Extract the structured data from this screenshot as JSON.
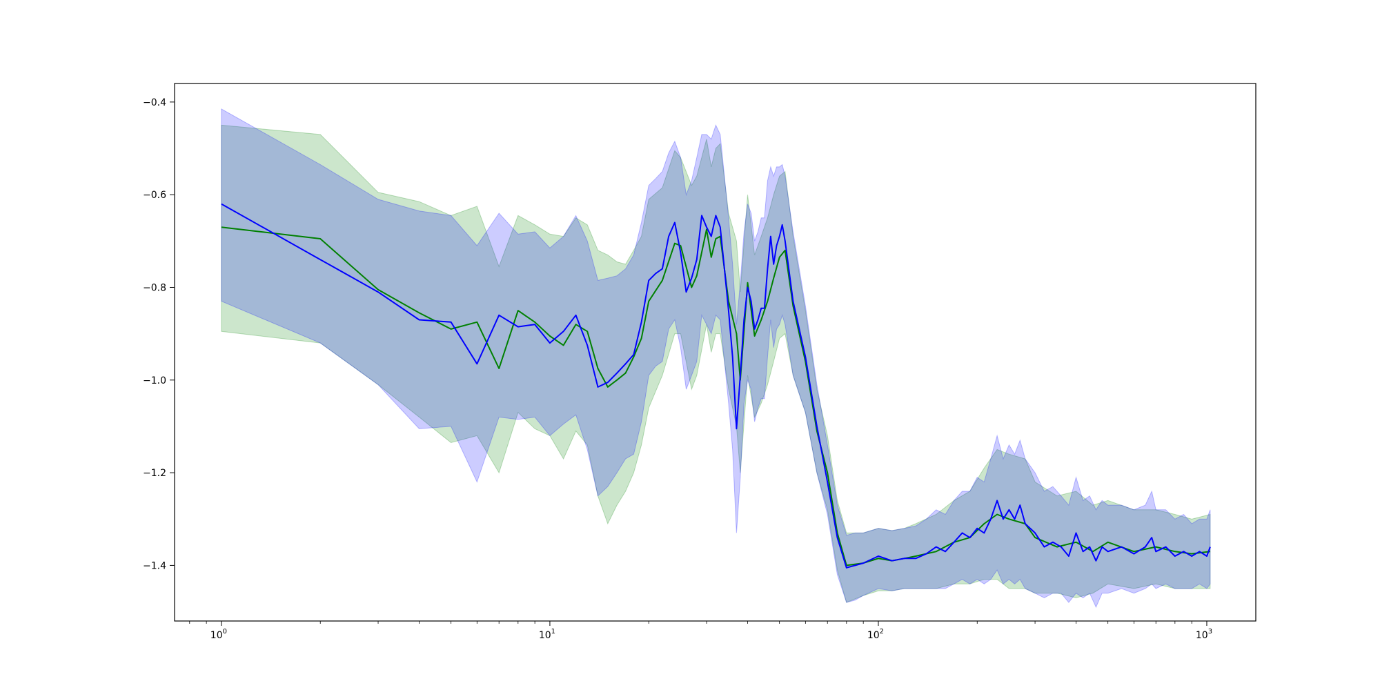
{
  "chart_data": {
    "type": "line",
    "xscale": "log",
    "xlim": [
      0.72,
      1410
    ],
    "ylim": [
      -1.52,
      -0.36
    ],
    "grid": false,
    "legend": "none",
    "title": "",
    "xlabel": "",
    "ylabel": "",
    "x_ticks": [
      {
        "value": 1,
        "base": "10",
        "exp": "0"
      },
      {
        "value": 10,
        "base": "10",
        "exp": "1"
      },
      {
        "value": 100,
        "base": "10",
        "exp": "2"
      },
      {
        "value": 1000,
        "base": "10",
        "exp": "3"
      }
    ],
    "y_ticks": [
      {
        "value": -0.4,
        "label": "−0.4"
      },
      {
        "value": -0.6,
        "label": "−0.6"
      },
      {
        "value": -0.8,
        "label": "−0.8"
      },
      {
        "value": -1.0,
        "label": "−1.0"
      },
      {
        "value": -1.2,
        "label": "−1.2"
      },
      {
        "value": -1.4,
        "label": "−1.4"
      }
    ],
    "series": [
      {
        "color": "#008000",
        "band_color": "#008000",
        "points": [
          [
            1,
            -0.67,
            -0.895,
            -0.45
          ],
          [
            2,
            -0.695,
            -0.92,
            -0.47
          ],
          [
            3,
            -0.805,
            -1.01,
            -0.595
          ],
          [
            4,
            -0.855,
            -1.08,
            -0.615
          ],
          [
            5,
            -0.89,
            -1.135,
            -0.645
          ],
          [
            6,
            -0.875,
            -1.12,
            -0.625
          ],
          [
            7,
            -0.975,
            -1.2,
            -0.755
          ],
          [
            8,
            -0.85,
            -1.07,
            -0.645
          ],
          [
            9,
            -0.875,
            -1.105,
            -0.665
          ],
          [
            10,
            -0.905,
            -1.12,
            -0.685
          ],
          [
            11,
            -0.925,
            -1.17,
            -0.69
          ],
          [
            12,
            -0.88,
            -1.11,
            -0.65
          ],
          [
            13,
            -0.895,
            -1.14,
            -0.665
          ],
          [
            14,
            -0.975,
            -1.25,
            -0.72
          ],
          [
            15,
            -1.015,
            -1.31,
            -0.73
          ],
          [
            16,
            -1.0,
            -1.27,
            -0.745
          ],
          [
            17,
            -0.985,
            -1.24,
            -0.75
          ],
          [
            18,
            -0.95,
            -1.2,
            -0.72
          ],
          [
            19,
            -0.91,
            -1.14,
            -0.69
          ],
          [
            20,
            -0.83,
            -1.06,
            -0.61
          ],
          [
            22,
            -0.785,
            -0.99,
            -0.585
          ],
          [
            24,
            -0.705,
            -0.9,
            -0.505
          ],
          [
            25,
            -0.71,
            -0.9,
            -0.52
          ],
          [
            27,
            -0.8,
            -1.02,
            -0.58
          ],
          [
            28,
            -0.775,
            -0.99,
            -0.56
          ],
          [
            30,
            -0.675,
            -0.88,
            -0.48
          ],
          [
            31,
            -0.735,
            -0.94,
            -0.54
          ],
          [
            32,
            -0.695,
            -0.9,
            -0.5
          ],
          [
            33,
            -0.69,
            -0.9,
            -0.49
          ],
          [
            35,
            -0.83,
            -1.02,
            -0.64
          ],
          [
            37,
            -0.9,
            -1.1,
            -0.7
          ],
          [
            38,
            -1.0,
            -1.2,
            -0.81
          ],
          [
            40,
            -0.79,
            -0.99,
            -0.6
          ],
          [
            42,
            -0.905,
            -1.08,
            -0.73
          ],
          [
            44,
            -0.87,
            -1.05,
            -0.69
          ],
          [
            46,
            -0.83,
            -1.01,
            -0.65
          ],
          [
            48,
            -0.78,
            -0.96,
            -0.6
          ],
          [
            50,
            -0.735,
            -0.91,
            -0.56
          ],
          [
            52,
            -0.72,
            -0.9,
            -0.55
          ],
          [
            55,
            -0.84,
            -0.99,
            -0.69
          ],
          [
            60,
            -0.96,
            -1.07,
            -0.85
          ],
          [
            65,
            -1.11,
            -1.2,
            -1.02
          ],
          [
            70,
            -1.2,
            -1.28,
            -1.12
          ],
          [
            75,
            -1.33,
            -1.41,
            -1.26
          ],
          [
            80,
            -1.4,
            -1.48,
            -1.33
          ],
          [
            90,
            -1.395,
            -1.465,
            -1.33
          ],
          [
            100,
            -1.385,
            -1.455,
            -1.32
          ],
          [
            110,
            -1.39,
            -1.455,
            -1.325
          ],
          [
            120,
            -1.385,
            -1.45,
            -1.32
          ],
          [
            130,
            -1.38,
            -1.45,
            -1.31
          ],
          [
            150,
            -1.37,
            -1.45,
            -1.29
          ],
          [
            170,
            -1.35,
            -1.44,
            -1.26
          ],
          [
            190,
            -1.34,
            -1.44,
            -1.24
          ],
          [
            210,
            -1.31,
            -1.43,
            -1.19
          ],
          [
            230,
            -1.29,
            -1.43,
            -1.15
          ],
          [
            250,
            -1.3,
            -1.45,
            -1.16
          ],
          [
            280,
            -1.31,
            -1.45,
            -1.17
          ],
          [
            300,
            -1.34,
            -1.46,
            -1.22
          ],
          [
            350,
            -1.36,
            -1.46,
            -1.25
          ],
          [
            400,
            -1.35,
            -1.47,
            -1.24
          ],
          [
            450,
            -1.37,
            -1.46,
            -1.27
          ],
          [
            500,
            -1.35,
            -1.44,
            -1.26
          ],
          [
            600,
            -1.37,
            -1.45,
            -1.28
          ],
          [
            700,
            -1.36,
            -1.44,
            -1.28
          ],
          [
            800,
            -1.37,
            -1.45,
            -1.29
          ],
          [
            900,
            -1.375,
            -1.45,
            -1.3
          ],
          [
            1024,
            -1.37,
            -1.45,
            -1.29
          ]
        ]
      },
      {
        "color": "#0000ff",
        "band_color": "#0000ff",
        "points": [
          [
            1,
            -0.62,
            -0.83,
            -0.415
          ],
          [
            2,
            -0.74,
            -0.92,
            -0.535
          ],
          [
            3,
            -0.81,
            -1.01,
            -0.61
          ],
          [
            4,
            -0.87,
            -1.105,
            -0.635
          ],
          [
            5,
            -0.875,
            -1.1,
            -0.645
          ],
          [
            6,
            -0.965,
            -1.22,
            -0.71
          ],
          [
            7,
            -0.86,
            -1.08,
            -0.64
          ],
          [
            8,
            -0.885,
            -1.085,
            -0.685
          ],
          [
            9,
            -0.88,
            -1.08,
            -0.68
          ],
          [
            10,
            -0.92,
            -1.12,
            -0.715
          ],
          [
            11,
            -0.895,
            -1.095,
            -0.69
          ],
          [
            12,
            -0.86,
            -1.075,
            -0.645
          ],
          [
            13,
            -0.925,
            -1.15,
            -0.7
          ],
          [
            14,
            -1.015,
            -1.25,
            -0.785
          ],
          [
            15,
            -1.005,
            -1.23,
            -0.78
          ],
          [
            16,
            -0.985,
            -1.2,
            -0.775
          ],
          [
            17,
            -0.965,
            -1.17,
            -0.76
          ],
          [
            18,
            -0.945,
            -1.16,
            -0.73
          ],
          [
            19,
            -0.875,
            -1.09,
            -0.66
          ],
          [
            20,
            -0.785,
            -0.99,
            -0.58
          ],
          [
            21,
            -0.77,
            -0.97,
            -0.565
          ],
          [
            22,
            -0.76,
            -0.96,
            -0.55
          ],
          [
            23,
            -0.69,
            -0.89,
            -0.51
          ],
          [
            24,
            -0.66,
            -0.87,
            -0.485
          ],
          [
            25,
            -0.725,
            -0.93,
            -0.52
          ],
          [
            26,
            -0.81,
            -1.02,
            -0.6
          ],
          [
            27,
            -0.78,
            -0.99,
            -0.57
          ],
          [
            28,
            -0.74,
            -0.96,
            -0.52
          ],
          [
            29,
            -0.645,
            -0.86,
            -0.47
          ],
          [
            30,
            -0.67,
            -0.88,
            -0.47
          ],
          [
            31,
            -0.69,
            -0.9,
            -0.48
          ],
          [
            32,
            -0.645,
            -0.86,
            -0.45
          ],
          [
            33,
            -0.67,
            -0.87,
            -0.47
          ],
          [
            34,
            -0.76,
            -0.96,
            -0.56
          ],
          [
            35,
            -0.85,
            -1.05,
            -0.65
          ],
          [
            36,
            -0.95,
            -1.15,
            -0.75
          ],
          [
            37,
            -1.105,
            -1.33,
            -0.88
          ],
          [
            38,
            -0.99,
            -1.21,
            -0.79
          ],
          [
            39,
            -0.87,
            -1.05,
            -0.68
          ],
          [
            40,
            -0.8,
            -1.0,
            -0.62
          ],
          [
            41,
            -0.83,
            -1.02,
            -0.64
          ],
          [
            42,
            -0.89,
            -1.09,
            -0.7
          ],
          [
            43,
            -0.87,
            -1.06,
            -0.68
          ],
          [
            44,
            -0.845,
            -1.04,
            -0.65
          ],
          [
            45,
            -0.845,
            -1.04,
            -0.65
          ],
          [
            46,
            -0.76,
            -0.95,
            -0.57
          ],
          [
            47,
            -0.69,
            -0.87,
            -0.54
          ],
          [
            48,
            -0.75,
            -0.93,
            -0.56
          ],
          [
            49,
            -0.71,
            -0.89,
            -0.54
          ],
          [
            50,
            -0.69,
            -0.88,
            -0.54
          ],
          [
            51,
            -0.665,
            -0.86,
            -0.535
          ],
          [
            52,
            -0.7,
            -0.88,
            -0.56
          ],
          [
            55,
            -0.83,
            -0.99,
            -0.68
          ],
          [
            60,
            -0.95,
            -1.07,
            -0.84
          ],
          [
            65,
            -1.1,
            -1.2,
            -1.01
          ],
          [
            70,
            -1.22,
            -1.29,
            -1.14
          ],
          [
            75,
            -1.34,
            -1.42,
            -1.27
          ],
          [
            80,
            -1.405,
            -1.48,
            -1.335
          ],
          [
            85,
            -1.4,
            -1.475,
            -1.33
          ],
          [
            90,
            -1.395,
            -1.465,
            -1.33
          ],
          [
            100,
            -1.38,
            -1.45,
            -1.32
          ],
          [
            110,
            -1.39,
            -1.455,
            -1.325
          ],
          [
            120,
            -1.385,
            -1.45,
            -1.32
          ],
          [
            130,
            -1.385,
            -1.45,
            -1.315
          ],
          [
            140,
            -1.375,
            -1.45,
            -1.3
          ],
          [
            150,
            -1.36,
            -1.45,
            -1.28
          ],
          [
            160,
            -1.37,
            -1.45,
            -1.29
          ],
          [
            170,
            -1.35,
            -1.44,
            -1.26
          ],
          [
            180,
            -1.33,
            -1.43,
            -1.24
          ],
          [
            190,
            -1.34,
            -1.44,
            -1.24
          ],
          [
            200,
            -1.32,
            -1.43,
            -1.21
          ],
          [
            210,
            -1.33,
            -1.44,
            -1.22
          ],
          [
            220,
            -1.3,
            -1.43,
            -1.17
          ],
          [
            230,
            -1.26,
            -1.41,
            -1.12
          ],
          [
            240,
            -1.3,
            -1.44,
            -1.17
          ],
          [
            250,
            -1.28,
            -1.43,
            -1.14
          ],
          [
            260,
            -1.3,
            -1.44,
            -1.16
          ],
          [
            270,
            -1.27,
            -1.43,
            -1.13
          ],
          [
            280,
            -1.31,
            -1.45,
            -1.17
          ],
          [
            300,
            -1.33,
            -1.46,
            -1.2
          ],
          [
            320,
            -1.36,
            -1.47,
            -1.24
          ],
          [
            340,
            -1.35,
            -1.46,
            -1.23
          ],
          [
            360,
            -1.36,
            -1.46,
            -1.25
          ],
          [
            380,
            -1.38,
            -1.48,
            -1.27
          ],
          [
            400,
            -1.33,
            -1.46,
            -1.21
          ],
          [
            420,
            -1.37,
            -1.47,
            -1.26
          ],
          [
            440,
            -1.36,
            -1.46,
            -1.25
          ],
          [
            460,
            -1.39,
            -1.49,
            -1.28
          ],
          [
            480,
            -1.36,
            -1.46,
            -1.26
          ],
          [
            500,
            -1.37,
            -1.46,
            -1.27
          ],
          [
            550,
            -1.36,
            -1.45,
            -1.27
          ],
          [
            600,
            -1.375,
            -1.46,
            -1.28
          ],
          [
            650,
            -1.36,
            -1.45,
            -1.27
          ],
          [
            680,
            -1.34,
            -1.44,
            -1.24
          ],
          [
            700,
            -1.37,
            -1.45,
            -1.28
          ],
          [
            750,
            -1.36,
            -1.44,
            -1.28
          ],
          [
            800,
            -1.38,
            -1.45,
            -1.3
          ],
          [
            850,
            -1.37,
            -1.45,
            -1.29
          ],
          [
            900,
            -1.38,
            -1.45,
            -1.31
          ],
          [
            950,
            -1.37,
            -1.44,
            -1.3
          ],
          [
            1000,
            -1.38,
            -1.45,
            -1.3
          ],
          [
            1024,
            -1.36,
            -1.44,
            -1.28
          ]
        ]
      }
    ]
  }
}
